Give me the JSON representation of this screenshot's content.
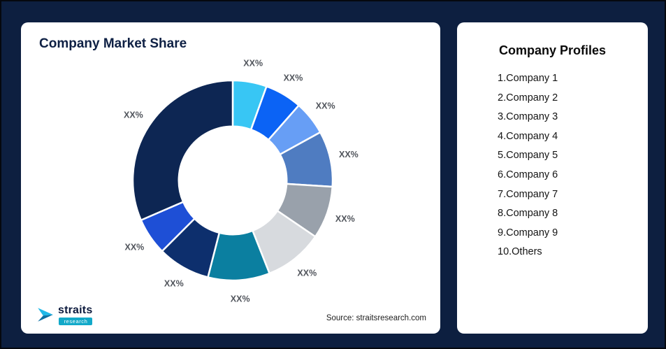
{
  "page": {
    "background": "#0d1f40"
  },
  "chart_card": {
    "title": "Company Market Share",
    "source": "Source: straitsresearch.com"
  },
  "logo": {
    "name": "straits",
    "sub": "research",
    "accent_color": "#12a9c9"
  },
  "profiles_card": {
    "title": "Company Profiles",
    "items": [
      "1.Company 1",
      "2.Company 2",
      "3.Company 3",
      "4.Company 4",
      "5.Company 5",
      "6.Company 6",
      "7.Company 7",
      "8.Company 8",
      "9.Company 9",
      "10.Others"
    ]
  },
  "chart_data": {
    "type": "pie",
    "subtype": "donut",
    "title": "Company Market Share",
    "slice_labels": [
      "XX%",
      "XX%",
      "XX%",
      "XX%",
      "XX%",
      "XX%",
      "XX%",
      "XX%",
      "XX%",
      "XX%"
    ],
    "values_pct_estimated": [
      5.5,
      6,
      5.5,
      9,
      8.5,
      9.5,
      10,
      8.5,
      6,
      31.5
    ],
    "colors": [
      "#38c6f4",
      "#0b63f5",
      "#679ef5",
      "#4f7cc1",
      "#99a1ab",
      "#d7dade",
      "#0b7fa0",
      "#0d2f6d",
      "#1e4fd6",
      "#0d2653"
    ],
    "start_angle_deg": 0,
    "direction": "clockwise",
    "inner_radius_ratio": 0.54,
    "legend_position": "none",
    "source": "Source: straitsresearch.com"
  }
}
